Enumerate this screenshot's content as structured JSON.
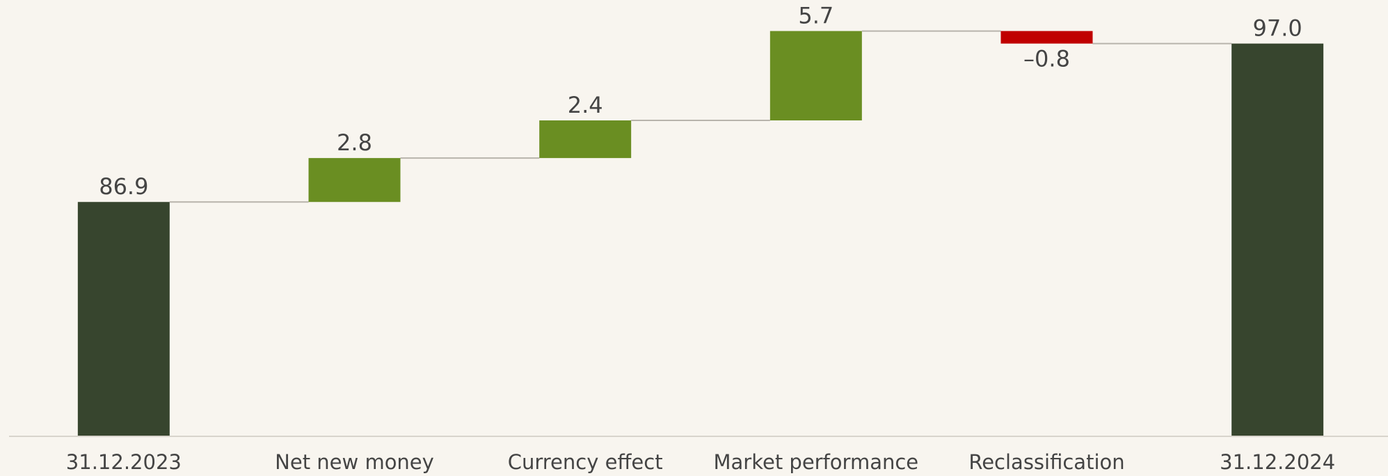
{
  "chart_data": {
    "type": "waterfall",
    "categories": [
      "31.12.2023",
      "Net new money",
      "Currency effect",
      "Market performance",
      "Reclassification",
      "31.12.2024"
    ],
    "values": [
      86.9,
      2.8,
      2.4,
      5.7,
      -0.8,
      97.0
    ],
    "value_labels": [
      "86.9",
      "2.8",
      "2.4",
      "5.7",
      "–0.8",
      "97.0"
    ],
    "measures": [
      "total",
      "relative",
      "relative",
      "relative",
      "relative",
      "total"
    ],
    "colors": {
      "total": "#37452e",
      "increase": "#6a8e22",
      "decrease": "#c00000"
    },
    "ylim": [
      72,
      100
    ]
  }
}
